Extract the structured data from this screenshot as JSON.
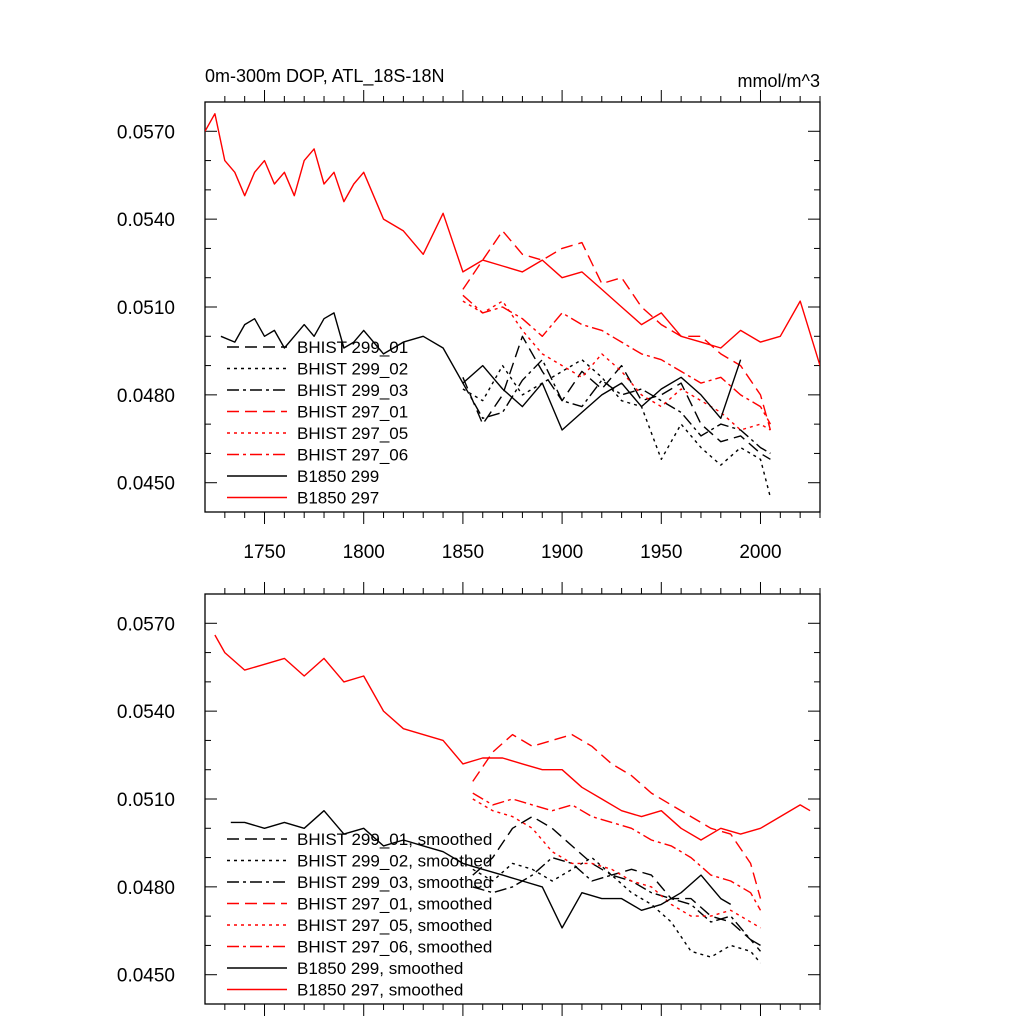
{
  "figure": {
    "title_left": "0m-300m DOP, ATL_18S-18N",
    "title_right": "mmol/m^3"
  },
  "chart_data": [
    {
      "type": "line",
      "panel": "top",
      "xlim": [
        1720,
        2030
      ],
      "ylim": [
        0.044,
        0.058
      ],
      "x_ticks": [
        1750,
        1800,
        1850,
        1900,
        1950,
        2000
      ],
      "y_ticks": [
        0.045,
        0.048,
        0.051,
        0.054,
        0.057
      ],
      "y_tick_labels": [
        "0.0450",
        "0.0480",
        "0.0510",
        "0.0540",
        "0.0570"
      ],
      "x_tick_labels": [
        "1750",
        "1800",
        "1850",
        "1900",
        "1950",
        "2000"
      ],
      "legend_position": "lower-left",
      "series": [
        {
          "name": "BHIST 299_01",
          "color": "#000000",
          "dash": "dashed",
          "x_start": 1850,
          "x": [
            1850,
            1860,
            1870,
            1880,
            1890,
            1900,
            1910,
            1920,
            1930,
            1940,
            1950,
            1960,
            1970,
            1980,
            1990,
            2000,
            2005
          ],
          "y": [
            0.0486,
            0.047,
            0.048,
            0.05,
            0.0488,
            0.0478,
            0.0488,
            0.0482,
            0.049,
            0.0478,
            0.048,
            0.0484,
            0.047,
            0.0464,
            0.0466,
            0.046,
            0.0458
          ]
        },
        {
          "name": "BHIST 299_02",
          "color": "#000000",
          "dash": "dotted",
          "x_start": 1850,
          "x": [
            1850,
            1860,
            1870,
            1880,
            1890,
            1900,
            1910,
            1920,
            1930,
            1940,
            1950,
            1960,
            1970,
            1980,
            1990,
            2000,
            2005
          ],
          "y": [
            0.0482,
            0.0478,
            0.049,
            0.048,
            0.0484,
            0.0488,
            0.0492,
            0.0486,
            0.0478,
            0.0476,
            0.0458,
            0.047,
            0.0462,
            0.0456,
            0.0462,
            0.0458,
            0.0445
          ]
        },
        {
          "name": "BHIST 299_03",
          "color": "#000000",
          "dash": "dashdot",
          "x_start": 1850,
          "x": [
            1850,
            1860,
            1870,
            1880,
            1890,
            1900,
            1910,
            1920,
            1930,
            1940,
            1950,
            1960,
            1970,
            1980,
            1990,
            2000,
            2005
          ],
          "y": [
            0.0484,
            0.0472,
            0.0474,
            0.0485,
            0.0492,
            0.0478,
            0.0476,
            0.0485,
            0.048,
            0.0482,
            0.0478,
            0.0474,
            0.0466,
            0.047,
            0.0468,
            0.0462,
            0.046
          ]
        },
        {
          "name": "BHIST 297_01",
          "color": "#ff0000",
          "dash": "dashed",
          "x_start": 1850,
          "x": [
            1850,
            1860,
            1870,
            1880,
            1890,
            1900,
            1910,
            1920,
            1930,
            1940,
            1950,
            1960,
            1970,
            1980,
            1990,
            2000,
            2005
          ],
          "y": [
            0.0516,
            0.0526,
            0.0536,
            0.0528,
            0.0526,
            0.053,
            0.0532,
            0.0518,
            0.052,
            0.051,
            0.0504,
            0.05,
            0.05,
            0.0494,
            0.049,
            0.048,
            0.0468
          ]
        },
        {
          "name": "BHIST 297_05",
          "color": "#ff0000",
          "dash": "dotted",
          "x_start": 1850,
          "x": [
            1850,
            1860,
            1870,
            1880,
            1890,
            1900,
            1910,
            1920,
            1930,
            1940,
            1950,
            1960,
            1970,
            1980,
            1990,
            2000,
            2005
          ],
          "y": [
            0.0512,
            0.0508,
            0.0512,
            0.0502,
            0.0494,
            0.049,
            0.0486,
            0.0494,
            0.0488,
            0.048,
            0.0476,
            0.0482,
            0.0478,
            0.0474,
            0.0468,
            0.047,
            0.0468
          ]
        },
        {
          "name": "BHIST 297_06",
          "color": "#ff0000",
          "dash": "dashdot",
          "x_start": 1850,
          "x": [
            1850,
            1860,
            1870,
            1880,
            1890,
            1900,
            1910,
            1920,
            1930,
            1940,
            1950,
            1960,
            1970,
            1980,
            1990,
            2000,
            2005
          ],
          "y": [
            0.0514,
            0.0508,
            0.051,
            0.0506,
            0.05,
            0.0508,
            0.0504,
            0.0502,
            0.0498,
            0.0494,
            0.0492,
            0.0488,
            0.0484,
            0.0486,
            0.048,
            0.0476,
            0.047
          ]
        },
        {
          "name": "B1850 299",
          "color": "#000000",
          "dash": "solid",
          "x_start": 1728,
          "x": [
            1728,
            1735,
            1740,
            1745,
            1750,
            1755,
            1760,
            1765,
            1770,
            1775,
            1780,
            1785,
            1790,
            1795,
            1800,
            1810,
            1820,
            1830,
            1840,
            1850,
            1860,
            1870,
            1880,
            1890,
            1900,
            1910,
            1920,
            1930,
            1940,
            1950,
            1960,
            1970,
            1980,
            1990
          ],
          "y": [
            0.05,
            0.0498,
            0.0504,
            0.0506,
            0.05,
            0.0502,
            0.0496,
            0.05,
            0.0504,
            0.05,
            0.0506,
            0.0508,
            0.0496,
            0.0498,
            0.0502,
            0.0494,
            0.0498,
            0.05,
            0.0496,
            0.0484,
            0.049,
            0.0482,
            0.0476,
            0.0484,
            0.0468,
            0.0474,
            0.048,
            0.0484,
            0.0476,
            0.0482,
            0.0486,
            0.048,
            0.0472,
            0.0492
          ]
        },
        {
          "name": "B1850 297",
          "color": "#ff0000",
          "dash": "solid",
          "x_start": 1720,
          "x": [
            1720,
            1725,
            1730,
            1735,
            1740,
            1745,
            1750,
            1755,
            1760,
            1765,
            1770,
            1775,
            1780,
            1785,
            1790,
            1795,
            1800,
            1810,
            1820,
            1830,
            1840,
            1850,
            1860,
            1870,
            1880,
            1890,
            1900,
            1910,
            1920,
            1930,
            1940,
            1950,
            1960,
            1970,
            1980,
            1990,
            2000,
            2010,
            2020,
            2030
          ],
          "y": [
            0.057,
            0.0576,
            0.056,
            0.0556,
            0.0548,
            0.0556,
            0.056,
            0.0552,
            0.0556,
            0.0548,
            0.056,
            0.0564,
            0.0552,
            0.0556,
            0.0546,
            0.0552,
            0.0556,
            0.054,
            0.0536,
            0.0528,
            0.0542,
            0.0522,
            0.0526,
            0.0524,
            0.0522,
            0.0526,
            0.052,
            0.0522,
            0.0516,
            0.051,
            0.0504,
            0.0508,
            0.05,
            0.0498,
            0.0496,
            0.0502,
            0.0498,
            0.05,
            0.0512,
            0.049
          ]
        }
      ]
    },
    {
      "type": "line",
      "panel": "bottom",
      "xlim": [
        1720,
        2030
      ],
      "ylim": [
        0.044,
        0.058
      ],
      "x_ticks": [
        1750,
        1800,
        1850,
        1900,
        1950,
        2000
      ],
      "y_ticks": [
        0.045,
        0.048,
        0.051,
        0.054,
        0.057
      ],
      "y_tick_labels": [
        "0.0450",
        "0.0480",
        "0.0510",
        "0.0540",
        "0.0570"
      ],
      "legend_position": "lower-left",
      "series": [
        {
          "name": "BHIST 299_01, smoothed",
          "color": "#000000",
          "dash": "dashed",
          "x": [
            1855,
            1865,
            1875,
            1885,
            1895,
            1905,
            1915,
            1925,
            1935,
            1945,
            1955,
            1965,
            1975,
            1985,
            1995,
            2000
          ],
          "y": [
            0.0484,
            0.049,
            0.05,
            0.0504,
            0.05,
            0.0494,
            0.0488,
            0.0484,
            0.0486,
            0.0484,
            0.0476,
            0.0476,
            0.047,
            0.0468,
            0.0462,
            0.0458
          ]
        },
        {
          "name": "BHIST 299_02, smoothed",
          "color": "#000000",
          "dash": "dotted",
          "x": [
            1855,
            1865,
            1875,
            1885,
            1895,
            1905,
            1915,
            1925,
            1935,
            1945,
            1955,
            1965,
            1975,
            1985,
            1995,
            2000
          ],
          "y": [
            0.0486,
            0.0482,
            0.0488,
            0.0486,
            0.0482,
            0.0486,
            0.049,
            0.0484,
            0.0478,
            0.0474,
            0.0468,
            0.0458,
            0.0456,
            0.046,
            0.0458,
            0.0454
          ]
        },
        {
          "name": "BHIST 299_03, smoothed",
          "color": "#000000",
          "dash": "dashdot",
          "x": [
            1855,
            1865,
            1875,
            1885,
            1895,
            1905,
            1915,
            1925,
            1935,
            1945,
            1955,
            1965,
            1975,
            1985,
            1995,
            2000
          ],
          "y": [
            0.048,
            0.0478,
            0.048,
            0.0484,
            0.049,
            0.0488,
            0.0482,
            0.0484,
            0.0482,
            0.0478,
            0.0476,
            0.0474,
            0.0468,
            0.047,
            0.0462,
            0.046
          ]
        },
        {
          "name": "BHIST 297_01, smoothed",
          "color": "#ff0000",
          "dash": "dashed",
          "x": [
            1855,
            1865,
            1875,
            1885,
            1895,
            1905,
            1915,
            1925,
            1935,
            1945,
            1955,
            1965,
            1975,
            1985,
            1995,
            2000
          ],
          "y": [
            0.0516,
            0.0526,
            0.0532,
            0.0528,
            0.053,
            0.0532,
            0.0528,
            0.0522,
            0.0518,
            0.0512,
            0.0508,
            0.0504,
            0.05,
            0.0498,
            0.0488,
            0.0476
          ]
        },
        {
          "name": "BHIST 297_05, smoothed",
          "color": "#ff0000",
          "dash": "dotted",
          "x": [
            1855,
            1865,
            1875,
            1885,
            1895,
            1905,
            1915,
            1925,
            1935,
            1945,
            1955,
            1965,
            1975,
            1985,
            1995,
            2000
          ],
          "y": [
            0.051,
            0.0506,
            0.0504,
            0.05,
            0.0492,
            0.0488,
            0.0488,
            0.0486,
            0.0482,
            0.048,
            0.0474,
            0.047,
            0.047,
            0.0472,
            0.0468,
            0.0466
          ]
        },
        {
          "name": "BHIST 297_06, smoothed",
          "color": "#ff0000",
          "dash": "dashdot",
          "x": [
            1855,
            1865,
            1875,
            1885,
            1895,
            1905,
            1915,
            1925,
            1935,
            1945,
            1955,
            1965,
            1975,
            1985,
            1995,
            2000
          ],
          "y": [
            0.0512,
            0.0508,
            0.051,
            0.0508,
            0.0506,
            0.0508,
            0.0504,
            0.0502,
            0.05,
            0.0496,
            0.0494,
            0.049,
            0.0484,
            0.0482,
            0.0478,
            0.0472
          ]
        },
        {
          "name": "B1850 299, smoothed",
          "color": "#000000",
          "dash": "solid",
          "x": [
            1733,
            1740,
            1750,
            1760,
            1770,
            1780,
            1790,
            1800,
            1810,
            1820,
            1830,
            1840,
            1850,
            1860,
            1870,
            1880,
            1890,
            1900,
            1910,
            1920,
            1930,
            1940,
            1950,
            1960,
            1970,
            1980,
            1985
          ],
          "y": [
            0.0502,
            0.0502,
            0.05,
            0.0502,
            0.05,
            0.0506,
            0.0498,
            0.05,
            0.0494,
            0.0496,
            0.0494,
            0.0492,
            0.0488,
            0.0486,
            0.0484,
            0.0482,
            0.048,
            0.0466,
            0.0478,
            0.0476,
            0.0476,
            0.0472,
            0.0474,
            0.0478,
            0.0484,
            0.0476,
            0.0474
          ]
        },
        {
          "name": "B1850 297, smoothed",
          "color": "#ff0000",
          "dash": "solid",
          "x": [
            1725,
            1730,
            1740,
            1750,
            1760,
            1770,
            1780,
            1790,
            1800,
            1810,
            1820,
            1830,
            1840,
            1850,
            1860,
            1870,
            1880,
            1890,
            1900,
            1910,
            1920,
            1930,
            1940,
            1950,
            1960,
            1970,
            1980,
            1990,
            2000,
            2010,
            2020,
            2025
          ],
          "y": [
            0.0566,
            0.056,
            0.0554,
            0.0556,
            0.0558,
            0.0552,
            0.0558,
            0.055,
            0.0552,
            0.054,
            0.0534,
            0.0532,
            0.053,
            0.0522,
            0.0524,
            0.0524,
            0.0522,
            0.052,
            0.052,
            0.0514,
            0.051,
            0.0506,
            0.0504,
            0.0506,
            0.05,
            0.0496,
            0.05,
            0.0498,
            0.05,
            0.0504,
            0.0508,
            0.0506
          ]
        }
      ]
    }
  ]
}
